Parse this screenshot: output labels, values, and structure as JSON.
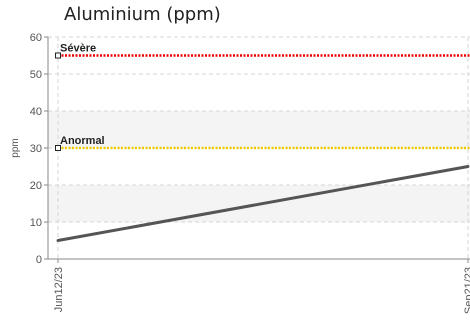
{
  "chart_data": {
    "type": "line",
    "title": "Aluminium (ppm)",
    "xlabel": "",
    "ylabel": "ppm",
    "ylim": [
      0,
      60
    ],
    "yticks": [
      0,
      10,
      20,
      30,
      40,
      50,
      60
    ],
    "x_tick_labels": [
      "Jun12/23",
      "Sep21/23"
    ],
    "grid": true,
    "shaded_bands": [
      [
        10,
        20
      ],
      [
        30,
        40
      ]
    ],
    "series": [
      {
        "values": [
          5,
          25
        ],
        "color": "#555555"
      }
    ],
    "reference_lines": [
      {
        "label": "Sévère",
        "value": 55,
        "color": "#ee0000"
      },
      {
        "label": "Anormal",
        "value": 30,
        "color": "#eecc00"
      }
    ]
  }
}
